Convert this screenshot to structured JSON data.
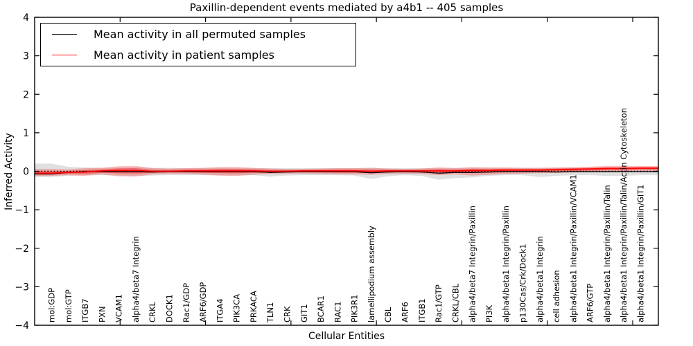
{
  "title": "Paxillin-dependent events mediated by a4b1 -- 405 samples",
  "legend": {
    "items": [
      {
        "label": "Mean activity in all permuted samples",
        "color": "#000000"
      },
      {
        "label": "Mean activity in patient samples",
        "color": "#ff0000"
      }
    ]
  },
  "axes": {
    "ylabel": "Inferred Activity",
    "xlabel": "Cellular Entities",
    "yticks": [
      -4,
      -3,
      -2,
      -1,
      0,
      1,
      2,
      3,
      4
    ],
    "ylim": [
      -4,
      4
    ]
  },
  "colors": {
    "permuted_line": "#000000",
    "patient_line": "#ff0000",
    "permuted_band": "rgba(0,0,0,0.12)",
    "patient_band_outer": "rgba(255,0,0,0.25)",
    "patient_band_inner": "rgba(255,0,0,0.40)",
    "zero_line": "#000000",
    "frame": "#000000"
  },
  "chart_data": {
    "type": "line",
    "title": "Paxillin-dependent events mediated by a4b1 -- 405 samples",
    "xlabel": "Cellular Entities",
    "ylabel": "Inferred Activity",
    "ylim": [
      -4,
      4
    ],
    "grid": false,
    "legend_position": "upper left",
    "categories": [
      "mol:GDP",
      "mol:GTP",
      "ITGB7",
      "PXN",
      "VCAM1",
      "alpha4/beta7 Integrin",
      "CRKL",
      "DOCK1",
      "Rac1/GDP",
      "ARF6/GDP",
      "ITGA4",
      "PIK3CA",
      "PRKACA",
      "TLN1",
      "CRK",
      "GIT1",
      "BCAR1",
      "RAC1",
      "PIK3R1",
      "lamellipodium assembly",
      "CBL",
      "ARF6",
      "ITGB1",
      "Rac1/GTP",
      "CRKL/CBL",
      "alpha4/beta7 Integrin/Paxillin",
      "PI3K",
      "alpha4/beta1 Integrin/Paxillin",
      "p130Cas/Crk/Dock1",
      "alpha4/beta1 Integrin",
      "cell adhesion",
      "alpha4/beta1 Integrin/Paxillin/VCAM1",
      "ARF6/GTP",
      "alpha4/beta1 Integrin/Paxillin/Talin",
      "alpha4/beta1 Integrin/Paxillin/Talin/Actin Cytoskeleton",
      "alpha4/beta1 Integrin/Paxillin/GIT1"
    ],
    "series": [
      {
        "name": "Mean activity in all permuted samples",
        "color": "#000000",
        "values": [
          -0.07,
          -0.03,
          -0.01,
          -0.01,
          -0.01,
          -0.01,
          -0.02,
          -0.01,
          -0.01,
          -0.01,
          -0.01,
          -0.01,
          -0.01,
          -0.03,
          -0.02,
          -0.01,
          -0.01,
          -0.01,
          -0.01,
          -0.04,
          -0.02,
          -0.01,
          -0.02,
          -0.05,
          -0.03,
          -0.03,
          -0.02,
          -0.01,
          -0.01,
          -0.01,
          -0.02,
          -0.01,
          -0.01,
          -0.01,
          -0.01,
          -0.01
        ],
        "band_lo": [
          -0.15,
          -0.12,
          -0.1,
          -0.1,
          -0.11,
          -0.12,
          -0.11,
          -0.1,
          -0.1,
          -0.1,
          -0.11,
          -0.11,
          -0.1,
          -0.14,
          -0.11,
          -0.1,
          -0.1,
          -0.1,
          -0.11,
          -0.2,
          -0.13,
          -0.1,
          -0.12,
          -0.22,
          -0.18,
          -0.16,
          -0.12,
          -0.1,
          -0.1,
          -0.15,
          -0.12,
          -0.1,
          -0.1,
          -0.12,
          -0.12,
          -0.1
        ],
        "band_hi": [
          0.2,
          0.12,
          0.1,
          0.09,
          0.1,
          0.11,
          0.09,
          0.09,
          0.08,
          0.08,
          0.09,
          0.09,
          0.08,
          0.08,
          0.08,
          0.08,
          0.08,
          0.08,
          0.08,
          0.09,
          0.08,
          0.08,
          0.08,
          0.09,
          0.09,
          0.09,
          0.09,
          0.09,
          0.09,
          0.09,
          0.09,
          0.09,
          0.09,
          0.1,
          0.1,
          0.1
        ]
      },
      {
        "name": "Mean activity in patient samples",
        "color": "#ff0000",
        "values": [
          -0.05,
          -0.03,
          -0.02,
          0.01,
          0.02,
          0.02,
          0.0,
          0.0,
          0.01,
          0.01,
          0.01,
          0.01,
          0.01,
          0.0,
          0.0,
          0.01,
          0.01,
          0.01,
          0.01,
          0.0,
          0.01,
          0.01,
          0.01,
          0.01,
          0.01,
          0.02,
          0.02,
          0.03,
          0.03,
          0.03,
          0.04,
          0.05,
          0.06,
          0.07,
          0.07,
          0.08
        ],
        "band_lo": [
          -0.12,
          -0.1,
          -0.12,
          -0.08,
          -0.13,
          -0.14,
          -0.08,
          -0.06,
          -0.07,
          -0.09,
          -0.11,
          -0.12,
          -0.09,
          -0.07,
          -0.06,
          -0.06,
          -0.07,
          -0.08,
          -0.08,
          -0.09,
          -0.07,
          -0.06,
          -0.07,
          -0.1,
          -0.08,
          -0.11,
          -0.09,
          -0.07,
          -0.06,
          -0.05,
          -0.04,
          -0.03,
          -0.02,
          -0.01,
          0.0,
          0.01
        ],
        "band_hi": [
          0.06,
          0.05,
          0.08,
          0.09,
          0.13,
          0.14,
          0.08,
          0.07,
          0.08,
          0.09,
          0.11,
          0.11,
          0.09,
          0.07,
          0.06,
          0.06,
          0.07,
          0.08,
          0.08,
          0.09,
          0.07,
          0.06,
          0.07,
          0.1,
          0.08,
          0.11,
          0.1,
          0.1,
          0.09,
          0.09,
          0.1,
          0.11,
          0.12,
          0.14,
          0.14,
          0.14
        ]
      }
    ],
    "zero_reference_line": 0
  }
}
